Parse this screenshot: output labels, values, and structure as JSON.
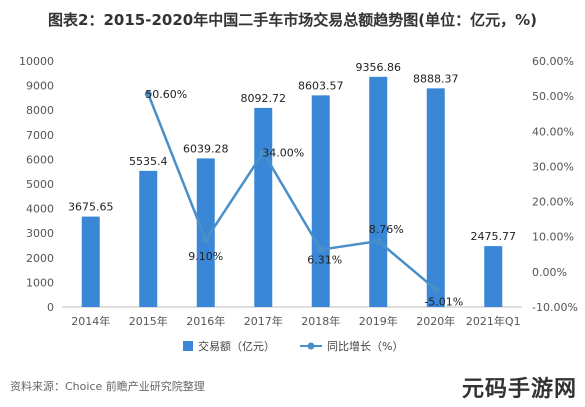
{
  "title": "图表2：2015-2020年中国二手车市场交易总额趋势图(单位：亿元，%)",
  "source": "资料来源：Choice 前瞻产业研究院整理",
  "watermark": "元码手游网",
  "colors": {
    "bar": "#3a87d8",
    "line": "#4a90c8",
    "axis": "#bfbfbf",
    "text": "#555555"
  },
  "chart_data": {
    "type": "bar",
    "categories": [
      "2014年",
      "2015年",
      "2016年",
      "2017年",
      "2018年",
      "2019年",
      "2020年",
      "2021年Q1"
    ],
    "series": [
      {
        "name": "交易额（亿元）",
        "type": "bar",
        "axis": "left",
        "values": [
          3675.65,
          5535.4,
          6039.28,
          8092.72,
          8603.57,
          9356.86,
          8888.37,
          2475.77
        ],
        "labels": [
          "3675.65",
          "5535.4",
          "6039.28",
          "8092.72",
          "8603.57",
          "9356.86",
          "8888.37",
          "2475.77"
        ]
      },
      {
        "name": "同比增长（%）",
        "type": "line",
        "axis": "right",
        "values": [
          null,
          50.6,
          9.1,
          34.0,
          6.31,
          8.76,
          -5.01,
          null
        ],
        "labels": [
          "",
          "50.60%",
          "9.10%",
          "34.00%",
          "6.31%",
          "8.76%",
          "-5.01%",
          ""
        ]
      }
    ],
    "ylim_left": [
      0,
      10000
    ],
    "yticks_left": [
      0,
      1000,
      2000,
      3000,
      4000,
      5000,
      6000,
      7000,
      8000,
      9000,
      10000
    ],
    "ylim_right": [
      -10,
      60
    ],
    "yticks_right": [
      "-10.00%",
      "0.00%",
      "10.00%",
      "20.00%",
      "30.00%",
      "40.00%",
      "50.00%",
      "60.00%"
    ],
    "legend_position": "bottom",
    "grid": false
  }
}
